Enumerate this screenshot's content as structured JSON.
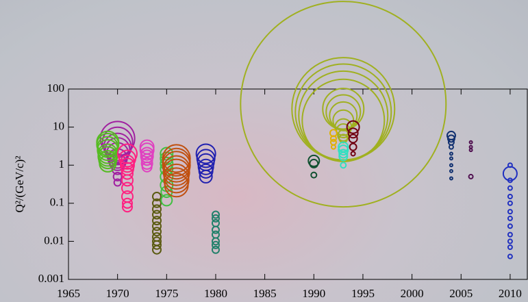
{
  "chart_data": {
    "type": "bubble",
    "y_label": "Q²/(GeV/c)²",
    "xlim": [
      1965,
      2011.75
    ],
    "xticks": [
      1965,
      1970,
      1975,
      1980,
      1985,
      1990,
      1995,
      2000,
      2005,
      2010
    ],
    "ylim": [
      0.001,
      100
    ],
    "yticks": [
      0.001,
      0.01,
      0.1,
      1,
      10,
      100
    ],
    "log_y": true,
    "series": [
      {
        "color": "#a020a0",
        "x": 1970,
        "values": [
          5,
          4,
          3,
          2.5,
          2,
          1.5,
          1.2,
          0.8,
          0.5,
          0.35
        ],
        "sizes": [
          25,
          22,
          20,
          18,
          16,
          14,
          12,
          8,
          6,
          5
        ]
      },
      {
        "color": "#55bb22",
        "x": 1969,
        "values": [
          4,
          3.5,
          3,
          2.5,
          2,
          1.7,
          1.4,
          1.1
        ],
        "sizes": [
          16,
          16,
          15,
          15,
          14,
          14,
          13,
          12
        ]
      },
      {
        "color": "#ff2080",
        "x": 1971,
        "values": [
          2,
          1.5,
          1.2,
          1,
          0.8,
          0.6,
          0.4,
          0.25,
          0.15,
          0.1,
          0.08
        ],
        "sizes": [
          14,
          12,
          10,
          10,
          9,
          8,
          8,
          8,
          8,
          7,
          7
        ]
      },
      {
        "color": "#e040c0",
        "x": 1973,
        "values": [
          3,
          2.5,
          2,
          1.7,
          1.4,
          1.1,
          0.9
        ],
        "sizes": [
          10,
          10,
          9,
          9,
          8,
          8,
          7
        ]
      },
      {
        "color": "#5a5a10",
        "x": 1974,
        "values": [
          0.15,
          0.1,
          0.07,
          0.05,
          0.035,
          0.025,
          0.018,
          0.013,
          0.01,
          0.008,
          0.006
        ],
        "sizes": [
          6,
          6,
          6,
          6,
          6,
          6,
          6,
          6,
          6,
          6,
          6
        ]
      },
      {
        "color": "#40c040",
        "x": 1975,
        "values": [
          2,
          1.5,
          1.1,
          0.8,
          0.5,
          0.3,
          0.2,
          0.12
        ],
        "sizes": [
          9,
          9,
          9,
          9,
          9,
          9,
          8,
          8
        ]
      },
      {
        "color": "#c05010",
        "x": 1976,
        "values": [
          1.5,
          1.2,
          1,
          0.8,
          0.65,
          0.5,
          0.4,
          0.3
        ],
        "sizes": [
          20,
          20,
          20,
          19,
          19,
          18,
          18,
          17
        ]
      },
      {
        "color": "#2020b0",
        "x": 1979,
        "values": [
          2,
          1.5,
          1.2,
          0.9,
          0.7,
          0.5
        ],
        "sizes": [
          14,
          13,
          12,
          11,
          10,
          9
        ]
      },
      {
        "color": "#20806a",
        "x": 1980,
        "values": [
          0.05,
          0.04,
          0.03,
          0.02,
          0.015,
          0.01,
          0.008,
          0.006
        ],
        "sizes": [
          5,
          5,
          5,
          5,
          5,
          5,
          5,
          5
        ]
      },
      {
        "color": "#105030",
        "x": 1990,
        "values": [
          1.3,
          1.1,
          0.55
        ],
        "sizes": [
          8,
          6,
          4
        ]
      },
      {
        "color": "#a0b020",
        "x": 1993,
        "values": [
          40,
          30,
          25,
          20,
          15,
          30,
          25,
          20,
          15,
          10,
          8,
          6,
          5
        ],
        "sizes": [
          150,
          75,
          70,
          65,
          60,
          30,
          25,
          20,
          15,
          12,
          10,
          8,
          6
        ]
      },
      {
        "color": "#e0b000",
        "x": 1992,
        "values": [
          7,
          5,
          4,
          3
        ],
        "sizes": [
          5,
          4,
          4,
          3
        ]
      },
      {
        "color": "#30e0c0",
        "x": 1993,
        "values": [
          3,
          2.5,
          2,
          1.7,
          1
        ],
        "sizes": [
          7,
          7,
          6,
          6,
          4
        ]
      },
      {
        "color": "#700010",
        "x": 1994,
        "values": [
          10,
          7,
          5,
          3,
          2
        ],
        "sizes": [
          9,
          7,
          6,
          5,
          3
        ]
      },
      {
        "color": "#103070",
        "x": 2004,
        "values": [
          6,
          5,
          4,
          3,
          2,
          1.5,
          1,
          0.7,
          0.45
        ],
        "sizes": [
          6,
          5,
          4,
          3,
          2,
          2,
          2,
          2,
          2
        ]
      },
      {
        "color": "#501050",
        "x": 2006,
        "values": [
          4,
          3,
          2.5,
          0.5
        ],
        "sizes": [
          2,
          2,
          2,
          3
        ]
      },
      {
        "color": "#2030c0",
        "x": 2010,
        "values": [
          1,
          0.6,
          0.4,
          0.25,
          0.15,
          0.1,
          0.06,
          0.04,
          0.025,
          0.015,
          0.01,
          0.007,
          0.004
        ],
        "sizes": [
          3,
          10,
          3,
          3,
          3,
          3,
          3,
          3,
          3,
          3,
          3,
          3,
          3
        ]
      }
    ]
  }
}
